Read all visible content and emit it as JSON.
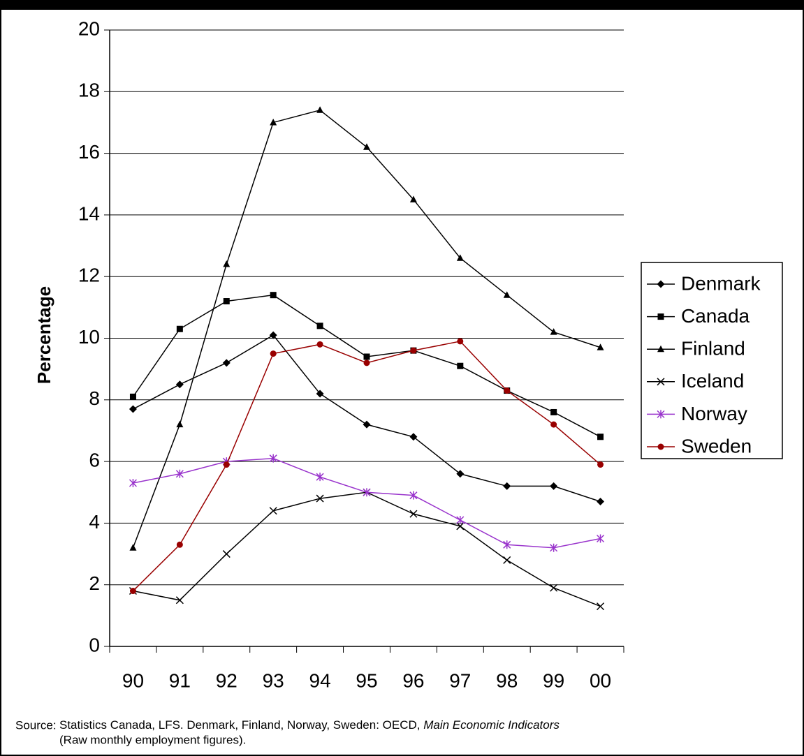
{
  "chart_data": {
    "type": "line",
    "y_label": "Percentage",
    "categories": [
      "90",
      "91",
      "92",
      "93",
      "94",
      "95",
      "96",
      "97",
      "98",
      "99",
      "00"
    ],
    "ylim": [
      0,
      20
    ],
    "yticks": [
      0,
      2,
      4,
      6,
      8,
      10,
      12,
      14,
      16,
      18,
      20
    ],
    "grid": true,
    "legend": "right",
    "series": [
      {
        "name": "Denmark",
        "color": "#000000",
        "marker": "diamond",
        "values": [
          7.7,
          8.5,
          9.2,
          10.1,
          8.2,
          7.2,
          6.8,
          5.6,
          5.2,
          5.2,
          4.7
        ]
      },
      {
        "name": "Canada",
        "color": "#000000",
        "marker": "square",
        "values": [
          8.1,
          10.3,
          11.2,
          11.4,
          10.4,
          9.4,
          9.6,
          9.1,
          8.3,
          7.6,
          6.8
        ]
      },
      {
        "name": "Finland",
        "color": "#000000",
        "marker": "triangle",
        "values": [
          3.2,
          7.2,
          12.4,
          17.0,
          17.4,
          16.2,
          14.5,
          12.6,
          11.4,
          10.2,
          9.7
        ]
      },
      {
        "name": "Iceland",
        "color": "#000000",
        "marker": "x",
        "values": [
          1.8,
          1.5,
          3.0,
          4.4,
          4.8,
          5.0,
          4.3,
          3.9,
          2.8,
          1.9,
          1.3
        ]
      },
      {
        "name": "Norway",
        "color": "#9933cc",
        "marker": "asterisk",
        "values": [
          5.3,
          5.6,
          6.0,
          6.1,
          5.5,
          5.0,
          4.9,
          4.1,
          3.3,
          3.2,
          3.5
        ]
      },
      {
        "name": "Sweden",
        "color": "#990000",
        "marker": "circle",
        "values": [
          1.8,
          3.3,
          5.9,
          9.5,
          9.8,
          9.2,
          9.6,
          9.9,
          8.3,
          7.2,
          5.9
        ]
      }
    ],
    "source": {
      "label": "Source:",
      "text_1": "Statistics Canada, LFS. Denmark, Finland, Norway, Sweden: OECD,",
      "text_italic": "Main Economic Indicators",
      "text_2": "(Raw monthly employment figures)."
    }
  }
}
